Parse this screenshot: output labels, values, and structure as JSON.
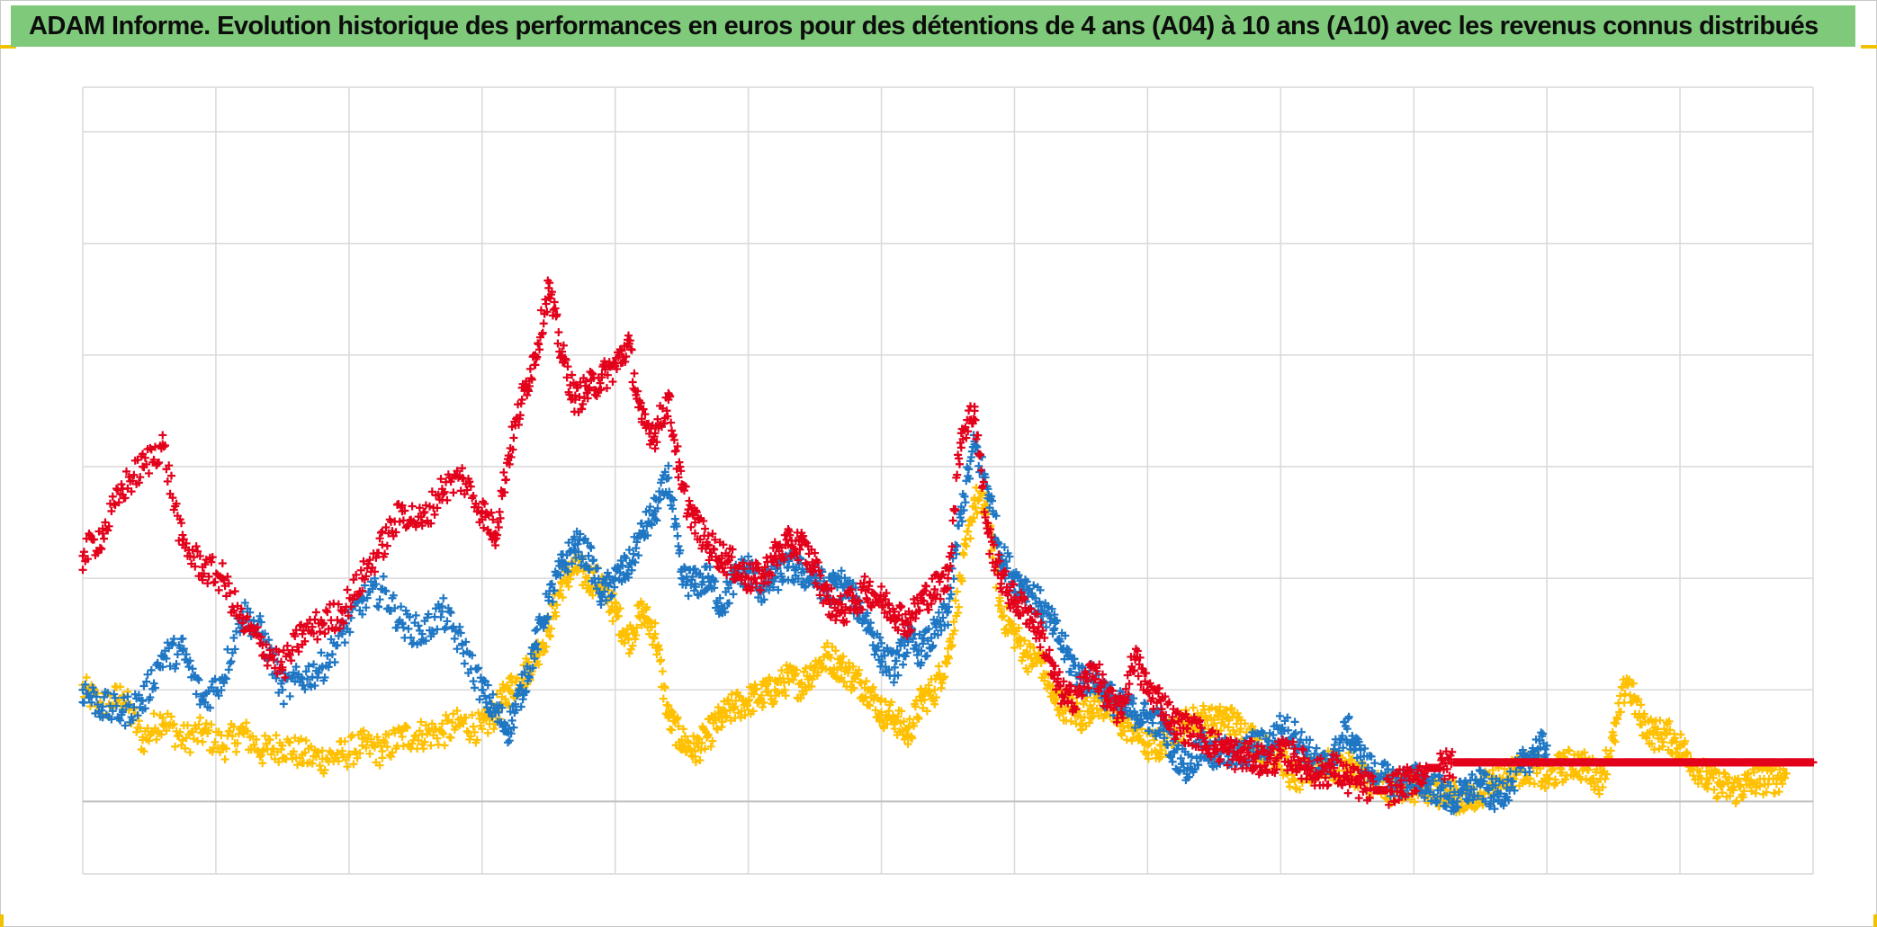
{
  "header": {
    "title": "ADAM Informe. Evolution historique des performances en euros pour des détentions de 4 ans (A04) à 10 ans (A10) avec les revenus connus distribués"
  },
  "colors": {
    "title_bar": "#7fca7a",
    "grid": "#d9d9d9",
    "zero_line": "#bfbfbf",
    "accent_corners": "#f2c200"
  },
  "chart_data": {
    "type": "scatter",
    "title": "ADAM Informe. Evolution historique des performances en euros pour des détentions de 4 ans (A04) à 10 ans (A10) avec les revenus connus distribués",
    "xlabel": "",
    "ylabel": "",
    "xlim": [
      0,
      13
    ],
    "ylim": [
      -0.65,
      6.4
    ],
    "grid": true,
    "legend": "none",
    "marker": "plus",
    "series": [
      {
        "color": "#ffc000",
        "x": [
          0.0,
          0.15,
          0.3,
          0.45,
          0.6,
          0.75,
          0.9,
          1.05,
          1.2,
          1.35,
          1.5,
          1.65,
          1.8,
          1.95,
          2.1,
          2.25,
          2.4,
          2.55,
          2.7,
          2.85,
          3.0,
          3.1,
          3.2,
          3.3,
          3.4,
          3.5,
          3.6,
          3.7,
          3.8,
          3.9,
          4.0,
          4.1,
          4.2,
          4.3,
          4.4,
          4.5,
          4.6,
          4.7,
          4.8,
          4.9,
          5.0,
          5.1,
          5.2,
          5.3,
          5.4,
          5.5,
          5.6,
          5.7,
          5.8,
          5.9,
          6.0,
          6.1,
          6.2,
          6.3,
          6.4,
          6.5,
          6.6,
          6.7,
          6.8,
          6.9,
          7.0,
          7.1,
          7.2,
          7.3,
          7.4,
          7.5,
          7.6,
          7.7,
          7.8,
          7.9,
          8.0,
          8.1,
          8.2,
          8.3,
          8.4,
          8.5,
          8.6,
          8.7,
          8.8,
          8.9,
          9.0,
          9.1,
          9.2,
          9.3,
          9.4,
          9.5,
          9.6,
          9.7,
          9.8,
          9.9,
          10.0,
          10.1,
          10.2,
          10.3,
          10.4,
          10.5,
          10.6,
          10.7,
          10.8,
          10.9,
          11.0,
          11.1,
          11.2,
          11.3,
          11.4,
          11.5,
          11.6,
          11.7,
          11.8,
          11.9,
          12.0,
          12.1,
          12.2,
          12.3,
          12.4,
          12.5,
          12.6,
          12.7,
          12.8
        ],
        "y": [
          1.0,
          0.85,
          0.95,
          0.55,
          0.75,
          0.55,
          0.62,
          0.5,
          0.62,
          0.45,
          0.5,
          0.42,
          0.38,
          0.42,
          0.5,
          0.45,
          0.58,
          0.6,
          0.62,
          0.7,
          0.65,
          0.8,
          1.0,
          1.1,
          1.3,
          1.55,
          1.95,
          2.1,
          2.0,
          1.95,
          1.7,
          1.45,
          1.7,
          1.5,
          0.75,
          0.55,
          0.45,
          0.6,
          0.75,
          0.85,
          0.9,
          0.95,
          1.0,
          1.1,
          1.05,
          1.2,
          1.3,
          1.2,
          1.1,
          1.0,
          0.8,
          0.75,
          0.6,
          0.9,
          1.0,
          1.3,
          2.0,
          2.7,
          2.6,
          1.7,
          1.5,
          1.3,
          1.25,
          0.9,
          0.85,
          0.75,
          0.9,
          0.85,
          0.7,
          0.65,
          0.5,
          0.5,
          0.65,
          0.7,
          0.75,
          0.7,
          0.75,
          0.65,
          0.55,
          0.45,
          0.4,
          0.2,
          0.25,
          0.35,
          0.3,
          0.3,
          0.25,
          0.15,
          0.1,
          0.15,
          0.12,
          0.05,
          0.1,
          0.05,
          0.0,
          0.08,
          0.22,
          0.25,
          0.28,
          0.3,
          0.2,
          0.3,
          0.35,
          0.3,
          0.2,
          0.55,
          1.1,
          0.75,
          0.6,
          0.6,
          0.5,
          0.35,
          0.2,
          0.15,
          0.1,
          0.15,
          0.2,
          0.2,
          0.25
        ]
      },
      {
        "color": "#1f77c4",
        "x": [
          0.0,
          0.15,
          0.3,
          0.45,
          0.6,
          0.75,
          0.9,
          1.05,
          1.2,
          1.35,
          1.5,
          1.65,
          1.8,
          1.95,
          2.1,
          2.25,
          2.4,
          2.55,
          2.7,
          2.85,
          3.0,
          3.1,
          3.2,
          3.3,
          3.4,
          3.5,
          3.6,
          3.7,
          3.8,
          3.9,
          4.0,
          4.1,
          4.2,
          4.3,
          4.4,
          4.5,
          4.6,
          4.7,
          4.8,
          4.9,
          5.0,
          5.1,
          5.2,
          5.3,
          5.4,
          5.5,
          5.6,
          5.7,
          5.8,
          5.9,
          6.0,
          6.1,
          6.2,
          6.3,
          6.4,
          6.5,
          6.6,
          6.7,
          6.8,
          6.9,
          7.0,
          7.1,
          7.2,
          7.3,
          7.4,
          7.5,
          7.6,
          7.7,
          7.8,
          7.9,
          8.0,
          8.1,
          8.2,
          8.3,
          8.4,
          8.5,
          8.6,
          8.7,
          8.8,
          8.9,
          9.0,
          9.1,
          9.2,
          9.3,
          9.4,
          9.5,
          9.6,
          9.7,
          9.8,
          9.9,
          10.0,
          10.1,
          10.2,
          10.3,
          10.4,
          10.5,
          10.6,
          10.7,
          10.8,
          10.9,
          11.0
        ],
        "y": [
          1.0,
          0.85,
          0.8,
          0.9,
          1.3,
          1.35,
          0.9,
          1.1,
          1.7,
          1.5,
          1.0,
          1.1,
          1.2,
          1.5,
          1.8,
          1.9,
          1.6,
          1.5,
          1.7,
          1.4,
          1.0,
          0.8,
          0.65,
          1.0,
          1.4,
          1.8,
          2.1,
          2.3,
          2.2,
          1.85,
          2.0,
          2.1,
          2.4,
          2.6,
          2.9,
          2.0,
          1.95,
          2.0,
          1.75,
          2.0,
          2.1,
          1.9,
          2.0,
          2.1,
          2.05,
          2.0,
          1.9,
          1.95,
          1.8,
          1.6,
          1.3,
          1.2,
          1.45,
          1.35,
          1.5,
          1.7,
          2.6,
          3.2,
          2.8,
          2.2,
          2.0,
          1.9,
          1.75,
          1.55,
          1.3,
          1.1,
          1.1,
          0.95,
          0.85,
          0.8,
          0.75,
          0.7,
          0.45,
          0.3,
          0.5,
          0.4,
          0.45,
          0.4,
          0.5,
          0.5,
          0.65,
          0.6,
          0.45,
          0.3,
          0.4,
          0.65,
          0.4,
          0.25,
          0.2,
          0.15,
          0.2,
          0.15,
          0.1,
          0.0,
          0.1,
          0.15,
          0.05,
          0.12,
          0.3,
          0.45,
          0.5
        ]
      },
      {
        "color": "#e3001b",
        "x": [
          0.0,
          0.15,
          0.3,
          0.45,
          0.6,
          0.75,
          0.9,
          1.05,
          1.2,
          1.35,
          1.5,
          1.65,
          1.8,
          1.95,
          2.1,
          2.25,
          2.4,
          2.55,
          2.7,
          2.85,
          3.0,
          3.1,
          3.2,
          3.3,
          3.4,
          3.5,
          3.6,
          3.7,
          3.8,
          3.9,
          4.0,
          4.1,
          4.2,
          4.3,
          4.4,
          4.5,
          4.6,
          4.7,
          4.8,
          4.9,
          5.0,
          5.1,
          5.2,
          5.3,
          5.4,
          5.5,
          5.6,
          5.7,
          5.8,
          5.9,
          6.0,
          6.1,
          6.2,
          6.3,
          6.4,
          6.5,
          6.6,
          6.7,
          6.8,
          6.9,
          7.0,
          7.1,
          7.2,
          7.3,
          7.4,
          7.5,
          7.6,
          7.7,
          7.8,
          7.9,
          8.0,
          8.1,
          8.2,
          8.3,
          8.4,
          8.5,
          8.6,
          8.7,
          8.8,
          8.9,
          9.0,
          9.1,
          9.2,
          9.3,
          9.4,
          9.5,
          9.6,
          9.7,
          9.8,
          9.9,
          10.0,
          10.1,
          10.2,
          10.3,
          10.4,
          10.5,
          10.6,
          10.7,
          10.8,
          10.9,
          11.0,
          11.1,
          11.2,
          11.3,
          11.4,
          11.5,
          11.6,
          11.7,
          11.8,
          11.9,
          12.0,
          12.1,
          12.2,
          12.3,
          12.4,
          12.5,
          12.6,
          12.7,
          12.8,
          12.9,
          13.0
        ],
        "y": [
          2.2,
          2.4,
          2.8,
          3.0,
          3.2,
          2.3,
          2.1,
          2.0,
          1.6,
          1.4,
          1.2,
          1.5,
          1.6,
          1.7,
          2.0,
          2.3,
          2.6,
          2.5,
          2.8,
          2.9,
          2.6,
          2.4,
          3.1,
          3.6,
          4.0,
          4.6,
          4.0,
          3.6,
          3.7,
          3.8,
          3.9,
          4.1,
          3.4,
          3.3,
          3.6,
          2.8,
          2.5,
          2.3,
          2.2,
          2.1,
          2.0,
          2.0,
          2.2,
          2.3,
          2.3,
          2.1,
          1.8,
          1.7,
          1.8,
          1.9,
          1.8,
          1.7,
          1.6,
          1.8,
          1.9,
          2.0,
          3.3,
          3.5,
          2.4,
          2.0,
          1.8,
          1.7,
          1.5,
          1.1,
          0.9,
          1.0,
          1.2,
          0.9,
          0.8,
          1.3,
          1.0,
          0.9,
          0.7,
          0.65,
          0.6,
          0.5,
          0.45,
          0.4,
          0.4,
          0.35,
          0.42,
          0.4,
          0.3,
          0.25,
          0.3,
          0.2,
          0.15,
          0.1,
          0.1,
          0.15,
          0.2,
          0.3,
          0.3,
          0.35,
          0.35,
          0.35,
          0.35,
          0.35,
          0.35,
          0.35,
          0.35,
          0.35,
          0.35,
          0.35,
          0.35,
          0.35,
          0.35,
          0.35,
          0.35,
          0.35,
          0.35,
          0.35,
          0.35,
          0.35,
          0.35,
          0.35,
          0.35,
          0.35,
          0.35,
          0.35,
          0.35
        ]
      }
    ]
  }
}
